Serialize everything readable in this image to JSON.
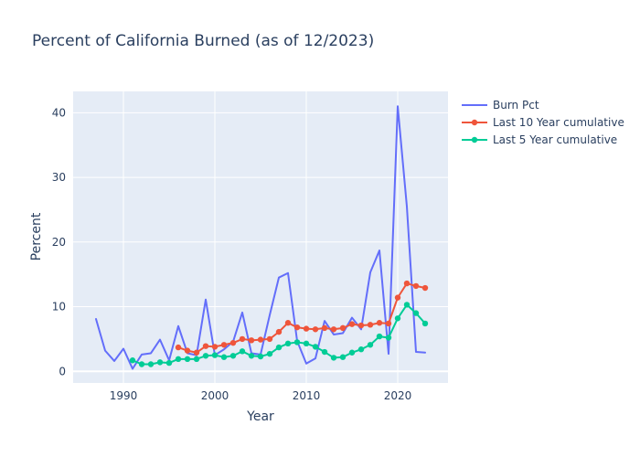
{
  "chart_data": {
    "type": "line",
    "title": "Percent of California Burned (as of 12/2023)",
    "xlabel": "Year",
    "ylabel": "Percent",
    "xlim": [
      1984.5,
      2025.5
    ],
    "ylim": [
      -1.8,
      43.3
    ],
    "x_ticks": [
      1990,
      2000,
      2010,
      2020
    ],
    "y_ticks": [
      0,
      10,
      20,
      30,
      40
    ],
    "grid": true,
    "legend_position": "top-right",
    "colors": {
      "plot_bg": "#e5ecf6",
      "grid": "#ffffff",
      "text": "#2a3f5f"
    },
    "series": [
      {
        "name": "Burn Pct",
        "mode": "lines",
        "color": "#636efa",
        "x": [
          1987,
          1988,
          1989,
          1990,
          1991,
          1992,
          1993,
          1994,
          1995,
          1996,
          1997,
          1998,
          1999,
          2000,
          2001,
          2002,
          2003,
          2004,
          2005,
          2006,
          2007,
          2008,
          2009,
          2010,
          2011,
          2012,
          2013,
          2014,
          2015,
          2016,
          2017,
          2018,
          2019,
          2020,
          2021,
          2022,
          2023
        ],
        "y": [
          8.1,
          3.2,
          1.6,
          3.5,
          0.4,
          2.6,
          2.8,
          4.9,
          1.7,
          7.0,
          2.8,
          2.5,
          11.1,
          2.5,
          3.4,
          4.6,
          9.1,
          2.8,
          2.6,
          8.7,
          14.5,
          15.2,
          4.7,
          1.2,
          2.0,
          7.8,
          5.7,
          5.9,
          8.3,
          6.5,
          15.3,
          18.7,
          2.7,
          41.0,
          25.5,
          3.0,
          2.9
        ]
      },
      {
        "name": "Last 10 Year cumulative",
        "mode": "lines+markers",
        "color": "#ef553b",
        "x": [
          1996,
          1997,
          1998,
          1999,
          2000,
          2001,
          2002,
          2003,
          2004,
          2005,
          2006,
          2007,
          2008,
          2009,
          2010,
          2011,
          2012,
          2013,
          2014,
          2015,
          2016,
          2017,
          2018,
          2019,
          2020,
          2021,
          2022,
          2023
        ],
        "y": [
          3.7,
          3.2,
          2.9,
          3.9,
          3.8,
          4.1,
          4.4,
          5.0,
          4.8,
          4.9,
          5.0,
          6.1,
          7.5,
          6.8,
          6.6,
          6.5,
          6.7,
          6.5,
          6.7,
          7.3,
          7.1,
          7.2,
          7.5,
          7.4,
          11.4,
          13.6,
          13.2,
          12.9
        ]
      },
      {
        "name": "Last 5 Year cumulative",
        "mode": "lines+markers",
        "color": "#00cc96",
        "x": [
          1991,
          1992,
          1993,
          1994,
          1995,
          1996,
          1997,
          1998,
          1999,
          2000,
          2001,
          2002,
          2003,
          2004,
          2005,
          2006,
          2007,
          2008,
          2009,
          2010,
          2011,
          2012,
          2013,
          2014,
          2015,
          2016,
          2017,
          2018,
          2019,
          2020,
          2021,
          2022,
          2023
        ],
        "y": [
          1.7,
          1.1,
          1.1,
          1.4,
          1.3,
          1.9,
          1.9,
          1.9,
          2.4,
          2.5,
          2.2,
          2.4,
          3.1,
          2.4,
          2.3,
          2.7,
          3.7,
          4.3,
          4.5,
          4.3,
          3.8,
          3.0,
          2.1,
          2.2,
          2.9,
          3.4,
          4.1,
          5.4,
          5.2,
          8.2,
          10.3,
          9.0,
          7.4
        ]
      }
    ]
  }
}
